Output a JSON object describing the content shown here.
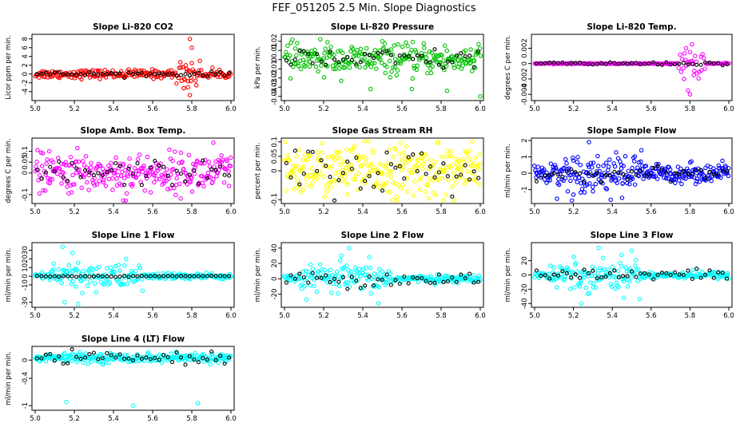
{
  "figure_title": "FEF_051205  2.5 Min. Slope Diagnostics",
  "chart_data": [
    {
      "type": "scatter",
      "title": "Slope Li-820 CO2",
      "ylabel": "Licor ppm per min.",
      "color": "#ff0000",
      "xlim": [
        5.0,
        6.0
      ],
      "ylim": [
        -5.5,
        8.5
      ],
      "x_ticks": [
        5.0,
        5.2,
        5.4,
        5.6,
        5.8,
        6.0
      ],
      "y_ticks": [
        -4,
        -2,
        0,
        2,
        4,
        6,
        8
      ],
      "spread": 0.5,
      "outliers": [
        [
          5.79,
          8.0
        ],
        [
          5.8,
          6.0
        ],
        [
          5.79,
          -4.8
        ],
        [
          5.78,
          -3.0
        ],
        [
          5.8,
          2.5
        ],
        [
          5.77,
          2.0
        ]
      ],
      "black_spread": 0.25,
      "n_points": 220
    },
    {
      "type": "scatter",
      "title": "Slope Li-820 Pressure",
      "ylabel": "kPa per min.",
      "color": "#00c000",
      "xlim": [
        5.0,
        6.0
      ],
      "ylim": [
        -0.042,
        0.025
      ],
      "x_ticks": [
        5.0,
        5.2,
        5.4,
        5.6,
        5.8,
        6.0
      ],
      "y_ticks": [
        -0.04,
        -0.03,
        -0.02,
        -0.01,
        0.0,
        0.01,
        0.02
      ],
      "spread": 0.008,
      "center": 0.0,
      "outliers": [
        [
          6.0,
          -0.04
        ],
        [
          5.44,
          -0.032
        ],
        [
          5.65,
          -0.032
        ],
        [
          5.83,
          -0.034
        ],
        [
          5.22,
          0.019
        ],
        [
          5.5,
          0.02
        ]
      ],
      "black_spread": 0.006,
      "n_points": 260
    },
    {
      "type": "scatter",
      "title": "Slope Li-820 Temp.",
      "ylabel": "degrees C per min.",
      "color": "#ff00ff",
      "xlim": [
        5.0,
        6.0
      ],
      "ylim": [
        -0.0045,
        0.0035
      ],
      "x_ticks": [
        5.0,
        5.2,
        5.4,
        5.6,
        5.8,
        6.0
      ],
      "y_ticks": [
        -0.004,
        -0.002,
        0.0,
        0.002
      ],
      "spread": 5e-05,
      "center": 0.0,
      "outliers": [
        [
          5.8,
          -0.004
        ],
        [
          5.79,
          -0.0035
        ],
        [
          5.81,
          0.0025
        ],
        [
          5.78,
          0.002
        ],
        [
          5.8,
          0.0015
        ],
        [
          5.77,
          -0.002
        ],
        [
          5.82,
          -0.0015
        ]
      ],
      "black_spread": 0.0001,
      "n_points": 180
    },
    {
      "type": "scatter",
      "title": "Slope Amb. Box Temp.",
      "ylabel": "degrees C per min.",
      "color": "#ff00ff",
      "xlim": [
        5.0,
        6.0
      ],
      "ylim": [
        -0.13,
        0.15
      ],
      "x_ticks": [
        5.0,
        5.2,
        5.4,
        5.6,
        5.8,
        6.0
      ],
      "y_ticks": [
        -0.1,
        0.0,
        0.05,
        0.1
      ],
      "spread": 0.045,
      "center": 0.0,
      "outliers": [
        [
          5.91,
          0.14
        ],
        [
          5.45,
          -0.13
        ]
      ],
      "black_spread": 0.03,
      "n_points": 280
    },
    {
      "type": "scatter",
      "title": "Slope Gas Stream RH",
      "ylabel": "percent per min.",
      "color": "#ffff00",
      "xlim": [
        5.0,
        6.0
      ],
      "ylim": [
        -0.105,
        0.105
      ],
      "x_ticks": [
        5.0,
        5.2,
        5.4,
        5.6,
        5.8,
        6.0
      ],
      "y_ticks": [
        -0.1,
        0.0,
        0.05,
        0.1
      ],
      "spread": 0.045,
      "center": 0.0,
      "outliers": [],
      "black_spread": 0.04,
      "n_points": 300
    },
    {
      "type": "scatter",
      "title": "Slope Sample Flow",
      "ylabel": "ml/min per min.",
      "color": "#0000ff",
      "xlim": [
        5.0,
        6.0
      ],
      "ylim": [
        -1.7,
        2.0
      ],
      "x_ticks": [
        5.0,
        5.2,
        5.4,
        5.6,
        5.8,
        6.0
      ],
      "y_ticks": [
        -1,
        0,
        1,
        2
      ],
      "spread": 0.35,
      "center": 0.0,
      "outliers": [
        [
          5.28,
          1.9
        ],
        [
          5.45,
          -1.5
        ],
        [
          5.2,
          -1.3
        ],
        [
          5.55,
          1.4
        ]
      ],
      "black_spread": 0.2,
      "n_points": 300
    },
    {
      "type": "scatter",
      "title": "Slope Line 1 Flow",
      "ylabel": "ml/min per min.",
      "color": "#00ffff",
      "xlim": [
        5.0,
        6.0
      ],
      "ylim": [
        -33,
        36
      ],
      "x_ticks": [
        5.0,
        5.2,
        5.4,
        5.6,
        5.8,
        6.0
      ],
      "y_ticks": [
        -30,
        -10,
        0,
        10,
        20,
        30
      ],
      "spread": 8,
      "center": 0.0,
      "outliers": [
        [
          5.14,
          34
        ],
        [
          5.22,
          -32
        ],
        [
          5.15,
          -30
        ],
        [
          5.19,
          27
        ]
      ],
      "black_spread": 0.3,
      "n_points": 240
    },
    {
      "type": "scatter",
      "title": "Slope Line 2 Flow",
      "ylabel": "ml/min per min.",
      "color": "#00ffff",
      "xlim": [
        5.0,
        6.0
      ],
      "ylim": [
        -34,
        44
      ],
      "x_ticks": [
        5.0,
        5.2,
        5.4,
        5.6,
        5.8,
        6.0
      ],
      "y_ticks": [
        -20,
        0,
        20,
        40
      ],
      "spread": 9,
      "center": 0.0,
      "outliers": [
        [
          5.33,
          40
        ],
        [
          5.48,
          -32
        ],
        [
          5.29,
          30
        ]
      ],
      "black_spread": 5,
      "n_points": 250
    },
    {
      "type": "scatter",
      "title": "Slope Line 3 Flow",
      "ylabel": "ml/min per min.",
      "color": "#00ffff",
      "xlim": [
        5.0,
        6.0
      ],
      "ylim": [
        -42,
        42
      ],
      "x_ticks": [
        5.0,
        5.2,
        5.4,
        5.6,
        5.8,
        6.0
      ],
      "y_ticks": [
        -40,
        -20,
        0,
        20
      ],
      "spread": 10,
      "center": 0.0,
      "outliers": [
        [
          5.33,
          38
        ],
        [
          5.24,
          -40
        ],
        [
          5.5,
          34
        ],
        [
          5.46,
          -32
        ]
      ],
      "black_spread": 4,
      "n_points": 250
    },
    {
      "type": "scatter",
      "title": "Slope Line 4 (LT) Flow",
      "ylabel": "ml/min per min.",
      "color": "#00ffff",
      "xlim": [
        5.0,
        6.0
      ],
      "ylim": [
        -1.05,
        0.25
      ],
      "x_ticks": [
        5.0,
        5.2,
        5.4,
        5.6,
        5.8,
        6.0
      ],
      "y_ticks": [
        -1.0,
        -0.4,
        0.0
      ],
      "spread": 0.05,
      "center": 0.05,
      "outliers": [
        [
          5.16,
          -0.92
        ],
        [
          5.5,
          -1.0
        ],
        [
          5.83,
          -0.95
        ]
      ],
      "black_spread": 0.06,
      "n_points": 260
    }
  ]
}
